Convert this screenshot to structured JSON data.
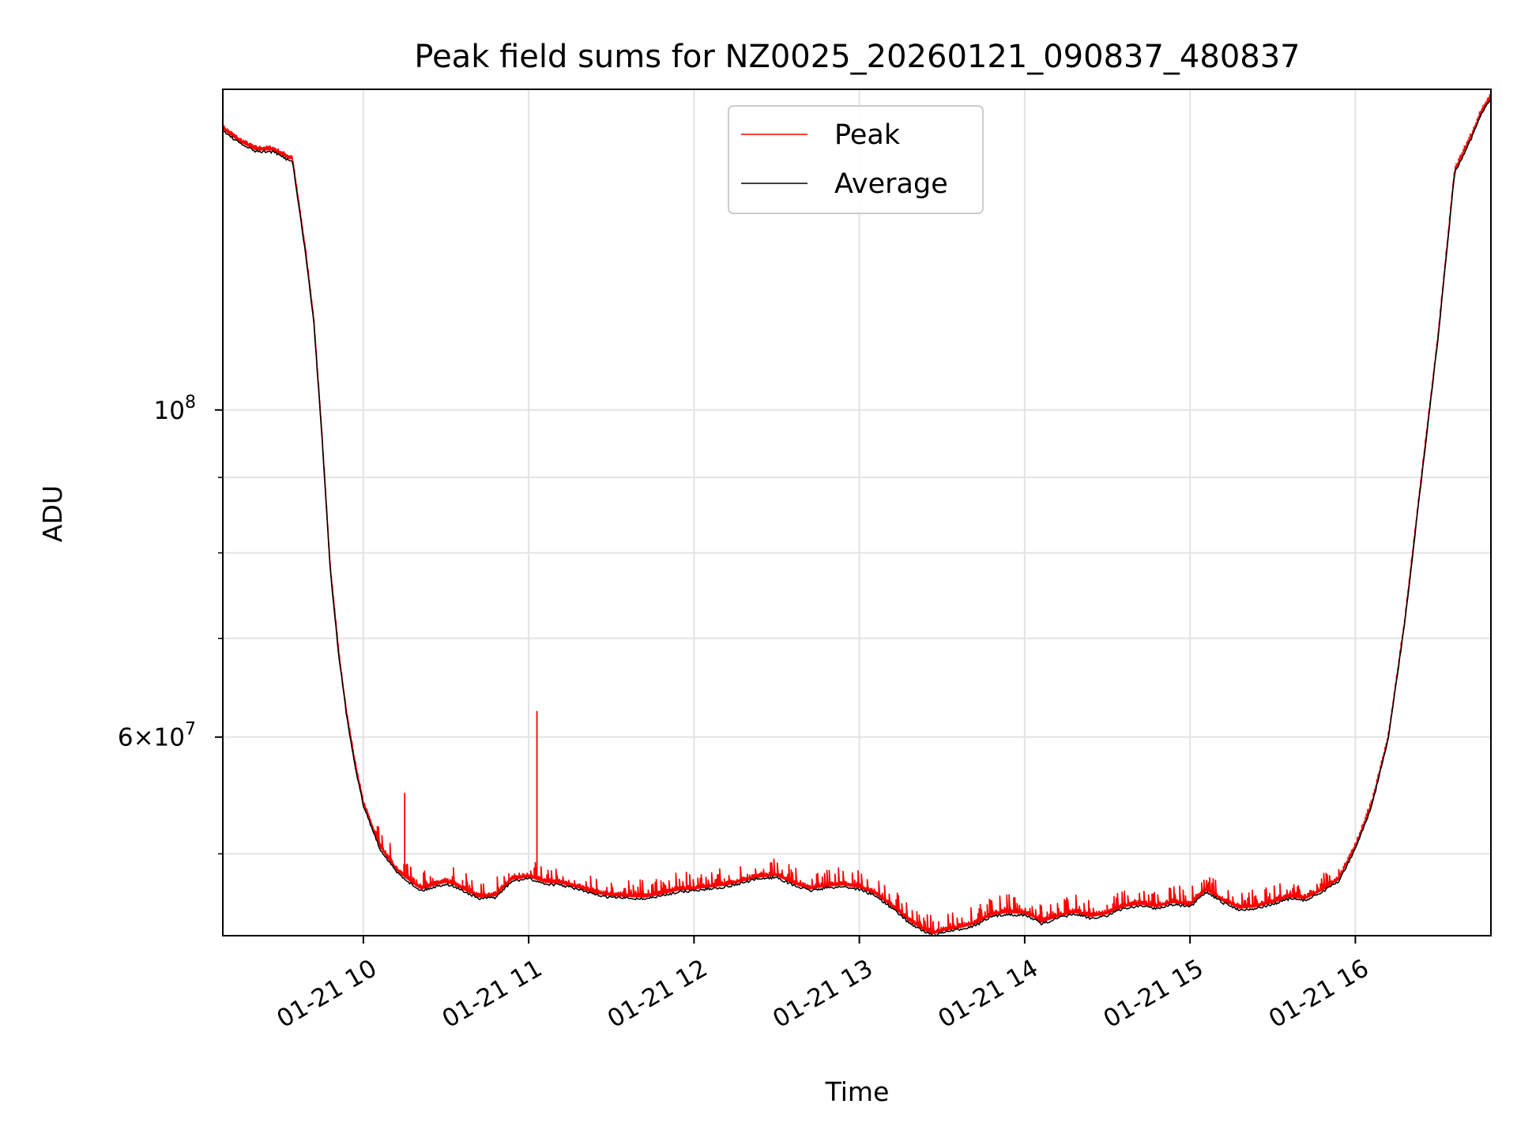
{
  "chart_data": {
    "type": "line",
    "title": "Peak field sums for NZ0025_20260121_090837_480837",
    "xlabel": "Time",
    "ylabel": "ADU",
    "yscale": "log",
    "xlim": [
      9.15,
      16.82
    ],
    "ylim": [
      44000000,
      165000000
    ],
    "grid": true,
    "legend_position": "top-center",
    "x_ticks": [
      {
        "value": 10,
        "label": "01-21 10"
      },
      {
        "value": 11,
        "label": "01-21 11"
      },
      {
        "value": 12,
        "label": "01-21 12"
      },
      {
        "value": 13,
        "label": "01-21 13"
      },
      {
        "value": 14,
        "label": "01-21 14"
      },
      {
        "value": 15,
        "label": "01-21 15"
      },
      {
        "value": 16,
        "label": "01-21 16"
      }
    ],
    "y_major_ticks": [
      {
        "value": 100000000,
        "base": "10",
        "exp": "8"
      },
      {
        "value": 60000000,
        "base": "6×10",
        "exp": "7"
      }
    ],
    "y_minor_ticks": [
      50000000,
      70000000,
      80000000,
      90000000
    ],
    "series": [
      {
        "name": "Peak",
        "color": "#ff0000",
        "spikes": [
          {
            "x": 10.25,
            "y": 55000000
          },
          {
            "x": 10.6,
            "y": 48000000
          },
          {
            "x": 10.88,
            "y": 48500000
          },
          {
            "x": 11.05,
            "y": 62500000
          },
          {
            "x": 12.47,
            "y": 48700000
          },
          {
            "x": 13.48,
            "y": 45000000
          },
          {
            "x": 14.0,
            "y": 45800000
          },
          {
            "x": 15.1,
            "y": 48000000
          },
          {
            "x": 15.9,
            "y": 48600000
          }
        ]
      },
      {
        "name": "Average",
        "color": "#000000",
        "x": [
          9.15,
          9.25,
          9.35,
          9.45,
          9.55,
          9.57,
          9.65,
          9.7,
          9.75,
          9.8,
          9.85,
          9.9,
          9.95,
          10.0,
          10.1,
          10.2,
          10.3,
          10.35,
          10.5,
          10.55,
          10.7,
          10.8,
          10.9,
          11.0,
          11.1,
          11.2,
          11.3,
          11.4,
          11.5,
          11.7,
          11.8,
          11.9,
          12.0,
          12.2,
          12.4,
          12.5,
          12.6,
          12.7,
          12.8,
          12.9,
          13.0,
          13.1,
          13.2,
          13.3,
          13.4,
          13.45,
          13.5,
          13.6,
          13.7,
          13.8,
          13.9,
          14.0,
          14.05,
          14.1,
          14.2,
          14.3,
          14.4,
          14.5,
          14.6,
          14.7,
          14.8,
          14.9,
          15.0,
          15.1,
          15.2,
          15.3,
          15.4,
          15.5,
          15.6,
          15.7,
          15.8,
          15.9,
          16.0,
          16.1,
          16.2,
          16.3,
          16.4,
          16.5,
          16.6,
          16.65,
          16.7,
          16.75,
          16.82
        ],
        "values": [
          155000000,
          152000000,
          150000000,
          150000000,
          148000000,
          148000000,
          128000000,
          115000000,
          96000000,
          78000000,
          68500000,
          62000000,
          57500000,
          54000000,
          50500000,
          48700000,
          47700000,
          47300000,
          47800000,
          47600000,
          46700000,
          46800000,
          48000000,
          48200000,
          47800000,
          47700000,
          47400000,
          47000000,
          46800000,
          46700000,
          46900000,
          47200000,
          47300000,
          47600000,
          48200000,
          48300000,
          47700000,
          47300000,
          47500000,
          47600000,
          47400000,
          46900000,
          46000000,
          45000000,
          44300000,
          44100000,
          44300000,
          44500000,
          44800000,
          45400000,
          45600000,
          45500000,
          45300000,
          44900000,
          45300000,
          45600000,
          45300000,
          45500000,
          46000000,
          46200000,
          46000000,
          46300000,
          46100000,
          47200000,
          46400000,
          45900000,
          46000000,
          46300000,
          46700000,
          46600000,
          47200000,
          48000000,
          50500000,
          54000000,
          60000000,
          72000000,
          90000000,
          112000000,
          145000000,
          149000000,
          153000000,
          158000000,
          163000000
        ]
      }
    ]
  }
}
